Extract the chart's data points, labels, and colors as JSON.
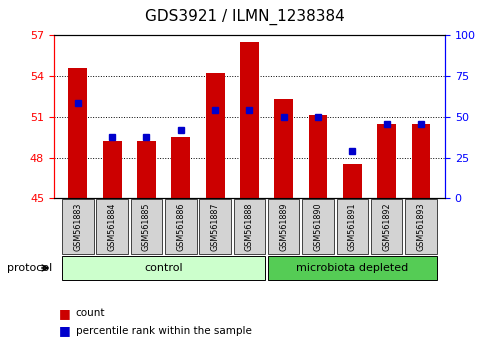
{
  "title": "GDS3921 / ILMN_1238384",
  "samples": [
    "GSM561883",
    "GSM561884",
    "GSM561885",
    "GSM561886",
    "GSM561887",
    "GSM561888",
    "GSM561889",
    "GSM561890",
    "GSM561891",
    "GSM561892",
    "GSM561893"
  ],
  "count_values": [
    54.6,
    49.2,
    49.2,
    49.5,
    54.2,
    56.5,
    52.3,
    51.1,
    47.5,
    50.5,
    50.5
  ],
  "percentile_values": [
    52.0,
    49.5,
    49.5,
    50.0,
    51.5,
    51.5,
    51.0,
    51.0,
    48.5,
    50.5,
    50.5
  ],
  "ylim_left": [
    45,
    57
  ],
  "ylim_right": [
    0,
    100
  ],
  "yticks_left": [
    45,
    48,
    51,
    54,
    57
  ],
  "yticks_right": [
    0,
    25,
    50,
    75,
    100
  ],
  "bar_color": "#cc0000",
  "square_color": "#0000cc",
  "control_color": "#ccffcc",
  "microbiota_color": "#55cc55",
  "label_bg_color": "#d3d3d3",
  "title_fontsize": 11,
  "tick_fontsize": 8,
  "label_fontsize": 5.8,
  "group_fontsize": 8,
  "legend_fontsize": 7.5
}
